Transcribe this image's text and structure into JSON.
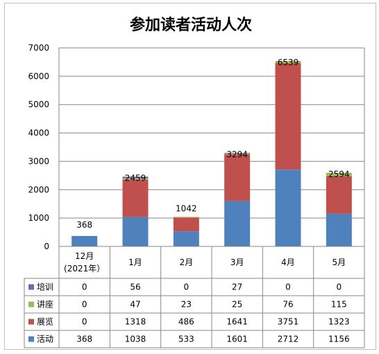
{
  "chart_data": {
    "type": "bar",
    "stacked": true,
    "title": "参加读者活动人次",
    "categories": [
      {
        "line1": "12月",
        "line2": "(2021年）"
      },
      {
        "line1": "1月",
        "line2": ""
      },
      {
        "line1": "2月",
        "line2": ""
      },
      {
        "line1": "3月",
        "line2": ""
      },
      {
        "line1": "4月",
        "line2": ""
      },
      {
        "line1": "5月",
        "line2": ""
      }
    ],
    "series": [
      {
        "name": "活动",
        "color": "#4f81bd",
        "values": [
          368,
          1038,
          533,
          1601,
          2712,
          1156
        ]
      },
      {
        "name": "展览",
        "color": "#c0504d",
        "values": [
          0,
          1318,
          486,
          1641,
          3751,
          1323
        ]
      },
      {
        "name": "讲座",
        "color": "#9bbb59",
        "values": [
          0,
          47,
          23,
          25,
          76,
          115
        ]
      },
      {
        "name": "培训",
        "color": "#8064a2",
        "values": [
          0,
          56,
          0,
          27,
          0,
          0
        ]
      }
    ],
    "totals": [
      "368",
      "2459",
      "1042",
      "3294",
      "6539",
      "2594"
    ],
    "ylim": [
      0,
      7000
    ],
    "yticks": [
      "0",
      "1000",
      "2000",
      "3000",
      "4000",
      "5000",
      "6000",
      "7000"
    ],
    "grid": true,
    "legend_placement": "data-table",
    "table_row_order": [
      "培训",
      "讲座",
      "展览",
      "活动"
    ]
  }
}
